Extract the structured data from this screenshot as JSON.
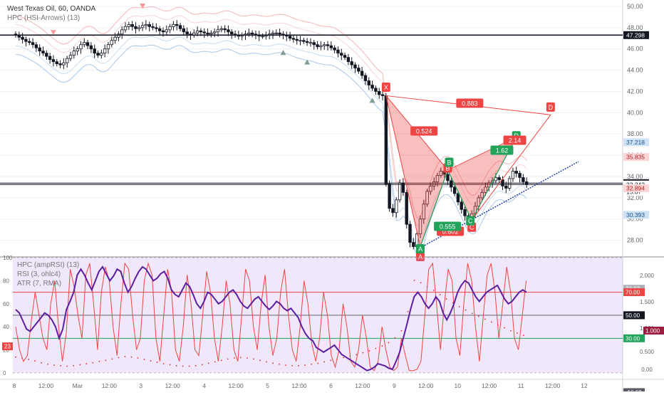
{
  "chart_data": [
    {
      "type": "candlestick",
      "title": "West Texas Oil, 60, OANDA",
      "indicator": "HPC (HSI-Arrows) (13)",
      "ylim": [
        26.5,
        50.6
      ],
      "yticks": [
        "50.00",
        "48.00",
        "46.00",
        "44.00",
        "42.00",
        "40.00",
        "38.00",
        "36.00",
        "34.00",
        "32.00",
        "30.00",
        "28.00"
      ],
      "price_badges": [
        {
          "value": 47.298,
          "label": "47.298",
          "bg": "#131722",
          "fg": "#ffffff"
        },
        {
          "value": 37.218,
          "label": "37.218",
          "bg": "#cfe3f7",
          "fg": "#1a4f8a"
        },
        {
          "value": 35.835,
          "label": "35.835",
          "bg": "#fbd5d5",
          "fg": "#b71c1c"
        },
        {
          "value": 33.375,
          "label": "33.375",
          "bg": "#131722",
          "fg": "#ffffff"
        },
        {
          "value": 33.242,
          "label": "33.242",
          "bg": "#ffffff",
          "fg": "#131722"
        },
        {
          "value": 32.55,
          "label": "15:07",
          "bg": "#ffffff",
          "fg": "#131722"
        },
        {
          "value": 32.894,
          "label": "32.894",
          "bg": "#fbd5d5",
          "fg": "#b71c1c"
        },
        {
          "value": 30.393,
          "label": "30.393",
          "bg": "#cfe3f7",
          "fg": "#1a4f8a"
        }
      ],
      "horizontal_levels": [
        47.298,
        33.375,
        33.242
      ],
      "close": [
        47.3,
        47.1,
        46.9,
        46.7,
        46.6,
        46.4,
        46.1,
        45.8,
        45.6,
        45.3,
        45.0,
        44.8,
        44.6,
        44.5,
        44.7,
        45.1,
        45.4,
        45.8,
        46.0,
        46.4,
        46.6,
        46.3,
        46.0,
        45.6,
        45.4,
        45.6,
        46.0,
        46.4,
        46.8,
        47.1,
        47.4,
        47.8,
        48.1,
        48.3,
        48.1,
        47.9,
        48.0,
        48.2,
        48.3,
        48.1,
        48.0,
        47.9,
        47.7,
        47.6,
        47.8,
        48.1,
        48.3,
        48.2,
        47.9,
        47.6,
        47.4,
        47.3,
        47.5,
        47.7,
        47.6,
        47.5,
        47.4,
        47.5,
        47.6,
        47.8,
        47.9,
        47.8,
        47.6,
        47.4,
        47.3,
        47.2,
        47.3,
        47.4,
        47.5,
        47.4,
        47.3,
        47.2,
        47.2,
        47.3,
        47.4,
        47.5,
        47.5,
        47.4,
        47.3,
        47.2,
        47.0,
        46.9,
        46.8,
        46.8,
        46.7,
        46.6,
        46.6,
        46.4,
        46.2,
        46.3,
        46.4,
        46.3,
        46.1,
        45.9,
        45.6,
        45.4,
        45.2,
        44.8,
        44.5,
        44.2,
        43.9,
        43.5,
        43.0,
        42.6,
        42.3,
        42.0,
        41.7,
        41.6,
        33.3,
        31.0,
        30.6,
        31.8,
        33.4,
        32.5,
        29.5,
        27.8,
        27.4,
        28.6,
        30.0,
        31.4,
        32.6,
        33.1,
        33.5,
        34.1,
        34.5,
        34.2,
        33.6,
        33.0,
        32.4,
        31.6,
        30.9,
        30.3,
        29.9,
        30.5,
        31.2,
        32.0,
        32.5,
        33.0,
        33.4,
        33.6,
        33.9,
        33.7,
        33.1,
        32.9,
        33.8,
        34.5,
        34.3,
        33.9,
        33.5,
        33.24
      ],
      "xtick_labels": [
        "8",
        "12:00",
        "Mar",
        "12:00",
        "3",
        "12:00",
        "4",
        "12:00",
        "5",
        "12:00",
        "6",
        "12:00",
        "9",
        "12:00",
        "10",
        "12:00",
        "11",
        "12:00",
        "12"
      ],
      "pattern_labels": [
        {
          "text": "X",
          "bg": "#ef4444"
        },
        {
          "text": "A",
          "bg": "#ef4444"
        },
        {
          "text": "A",
          "bg": "#22a35a"
        },
        {
          "text": "B",
          "bg": "#ef4444"
        },
        {
          "text": "B",
          "bg": "#22a35a"
        },
        {
          "text": "C",
          "bg": "#ef4444"
        },
        {
          "text": "C",
          "bg": "#22a35a"
        },
        {
          "text": "D",
          "bg": "#ef4444"
        },
        {
          "text": "D",
          "bg": "#22a35a"
        },
        {
          "text": "0.883",
          "bg": "#ef4444"
        },
        {
          "text": "0.524",
          "bg": "#ef4444"
        },
        {
          "text": "2.14",
          "bg": "#ef4444"
        },
        {
          "text": "1.62",
          "bg": "#22a35a"
        },
        {
          "text": "0.602",
          "bg": "#ef4444"
        },
        {
          "text": "0.555",
          "bg": "#22a35a"
        }
      ]
    },
    {
      "type": "line",
      "indicators": [
        "HPC (ampRSI) (13)",
        "RSI (3, ohlc4)",
        "ATR (7, RMA)"
      ],
      "ylim": [
        -5,
        100
      ],
      "yticks": [
        "100",
        "80",
        "60",
        "40",
        "20",
        "0"
      ],
      "right_ticks": [
        "2.000",
        "1.500",
        "1.000",
        "0.500",
        "0.00"
      ],
      "levels": [
        70,
        50,
        30,
        100,
        0
      ],
      "badges": [
        {
          "value": 73.03,
          "label": "73.03",
          "bg": "#b0b0b8",
          "fg": "#ffffff"
        },
        {
          "value": 70.0,
          "label": "70.00",
          "bg": "#ef4444",
          "fg": "#ffffff"
        },
        {
          "value": 50.04,
          "label": "50.04",
          "bg": "#6a1b9a",
          "fg": "#ffffff"
        },
        {
          "value": 50.0,
          "label": "50.00",
          "bg": "#131722",
          "fg": "#ffffff"
        },
        {
          "value": 30.0,
          "label": "30.00",
          "bg": "#22a35a",
          "fg": "#ffffff"
        },
        {
          "value": -16.69,
          "label": "-16.69",
          "bg": "#5a5a66",
          "fg": "#ffffff"
        }
      ],
      "left_badge": "23",
      "right_badge": "1.000",
      "amp_rsi": [
        55,
        52,
        45,
        38,
        36,
        40,
        44,
        48,
        52,
        50,
        46,
        40,
        30,
        38,
        55,
        62,
        70,
        85,
        90,
        85,
        78,
        72,
        80,
        88,
        92,
        86,
        80,
        84,
        90,
        88,
        78,
        70,
        75,
        82,
        88,
        92,
        90,
        85,
        80,
        82,
        86,
        88,
        82,
        72,
        68,
        66,
        72,
        78,
        75,
        68,
        60,
        56,
        62,
        70,
        68,
        64,
        60,
        62,
        66,
        70,
        72,
        68,
        62,
        58,
        56,
        60,
        64,
        66,
        62,
        58,
        55,
        58,
        62,
        60,
        56,
        54,
        56,
        52,
        48,
        40,
        34,
        30,
        28,
        22,
        20,
        18,
        20,
        22,
        24,
        20,
        16,
        14,
        12,
        10,
        8,
        6,
        4,
        2,
        3,
        5,
        8,
        7,
        6,
        4,
        3,
        10,
        18,
        30,
        42,
        55,
        66,
        70,
        66,
        60,
        56,
        60,
        66,
        62,
        52,
        46,
        52,
        60,
        70,
        76,
        80,
        78,
        72,
        66,
        62,
        66,
        70,
        72,
        74,
        76,
        70,
        64,
        60,
        62,
        66,
        70,
        72,
        70
      ],
      "rsi3": [
        40,
        20,
        10,
        15,
        45,
        70,
        50,
        30,
        20,
        60,
        80,
        40,
        10,
        35,
        90,
        75,
        50,
        30,
        85,
        95,
        60,
        20,
        70,
        92,
        80,
        40,
        15,
        60,
        95,
        90,
        50,
        20,
        30,
        80,
        95,
        85,
        30,
        10,
        50,
        90,
        70,
        20,
        10,
        40,
        85,
        60,
        20,
        15,
        50,
        88,
        70,
        30,
        10,
        40,
        80,
        60,
        20,
        10,
        50,
        90,
        80,
        40,
        20,
        60,
        85,
        40,
        15,
        30,
        70,
        90,
        50,
        20,
        10,
        40,
        80,
        60,
        25,
        10,
        30,
        70,
        50,
        15,
        5,
        20,
        60,
        40,
        10,
        5,
        20,
        50,
        30,
        5,
        2,
        10,
        40,
        20,
        5,
        2,
        5,
        30,
        15,
        2,
        2,
        3,
        10,
        50,
        90,
        95,
        60,
        20,
        60,
        90,
        80,
        30,
        15,
        60,
        95,
        80,
        40,
        10,
        50,
        85,
        95,
        70,
        30,
        60,
        92,
        70,
        30,
        20,
        50,
        80
      ],
      "atr_right": [
        0.45,
        0.43,
        0.4,
        0.37,
        0.33,
        0.3,
        0.28,
        0.27,
        0.26,
        0.27,
        0.29,
        0.31,
        0.33,
        0.36,
        0.38,
        0.41,
        0.44,
        0.46,
        0.45,
        0.43,
        0.4,
        0.37,
        0.34,
        0.31,
        0.29,
        0.27,
        0.26,
        0.26,
        0.27,
        0.29,
        0.32,
        0.35,
        0.38,
        0.41,
        0.43,
        0.44,
        0.43,
        0.41,
        0.38,
        0.35,
        0.32,
        0.3,
        0.28,
        0.27,
        0.27,
        0.28,
        0.3,
        0.32,
        0.35,
        0.38,
        0.41,
        0.44,
        0.47,
        0.5,
        0.54,
        0.58,
        0.63,
        0.68,
        0.75,
        0.85,
        1.0,
        1.4,
        2.05,
        2.0,
        1.92,
        1.84,
        1.75,
        1.66,
        1.58,
        1.5,
        1.43,
        1.36,
        1.3,
        1.24,
        1.18,
        1.12,
        1.06,
        1.0,
        0.95,
        0.9
      ]
    }
  ]
}
